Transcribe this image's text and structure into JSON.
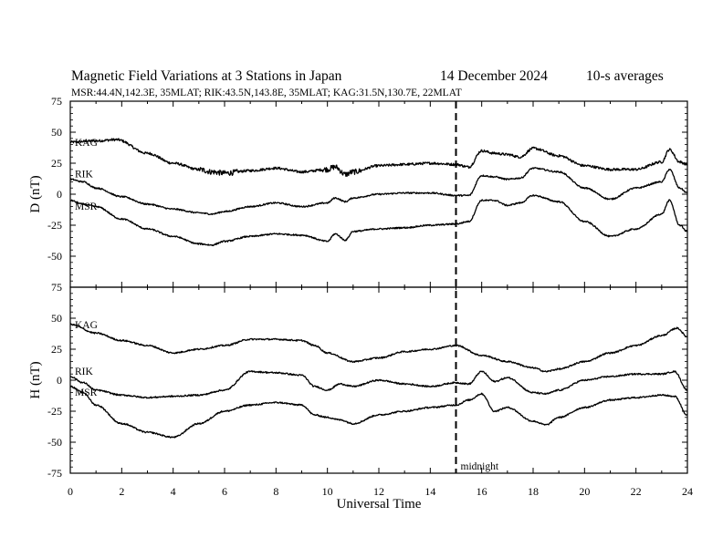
{
  "header": {
    "title": "Magnetic Field Variations at 3 Stations in Japan",
    "date": "14 December 2024",
    "averaging": "10-s averages",
    "stations_info": "MSR:44.4N,142.3E, 35MLAT;  RIK:43.5N,143.8E, 35MLAT;  KAG:31.5N,130.7E, 22MLAT"
  },
  "annotation": {
    "midnight_label": "midnight",
    "midnight_ut": 15
  },
  "chart_data": [
    {
      "type": "line",
      "panel": "D",
      "ylabel": "D (nT)",
      "ylim": [
        -75,
        75
      ],
      "yticks": [
        -75,
        -50,
        -25,
        0,
        25,
        50,
        75
      ],
      "xlim": [
        0,
        24
      ],
      "xticks": [
        0,
        2,
        4,
        6,
        8,
        10,
        12,
        14,
        16,
        18,
        20,
        22,
        24
      ],
      "grid": false,
      "series": [
        {
          "name": "KAG",
          "x": [
            0,
            1,
            1.8,
            3,
            4,
            5,
            5.5,
            6,
            7,
            8,
            9,
            10,
            10.3,
            10.7,
            11,
            12,
            13,
            14,
            15,
            15.5,
            16,
            16.5,
            17,
            17.5,
            18,
            19,
            20,
            21,
            22,
            23,
            23.3,
            23.7,
            24
          ],
          "y": [
            42,
            43,
            44,
            33,
            25,
            20,
            18,
            17,
            19,
            21,
            18,
            20,
            22,
            16,
            18,
            23,
            24,
            25,
            24,
            22,
            35,
            33,
            32,
            30,
            37,
            31,
            23,
            20,
            20,
            26,
            36,
            26,
            24
          ]
        },
        {
          "name": "RIK",
          "x": [
            0,
            0.5,
            1,
            2,
            3,
            4,
            5,
            5.5,
            6,
            7,
            8,
            9,
            10,
            10.3,
            10.7,
            11,
            12,
            13,
            14,
            15,
            15.5,
            16,
            16.5,
            17,
            17.5,
            18,
            19,
            20,
            21,
            22,
            23,
            23.3,
            23.7,
            24
          ],
          "y": [
            12,
            10,
            5,
            -2,
            -8,
            -12,
            -15,
            -16,
            -14,
            -10,
            -7,
            -10,
            -7,
            -3,
            -6,
            -3,
            0,
            1,
            1,
            -1,
            -1,
            15,
            14,
            12,
            13,
            21,
            18,
            5,
            -4,
            5,
            10,
            20,
            5,
            1
          ]
        },
        {
          "name": "MSR",
          "x": [
            0,
            0.5,
            1,
            2,
            3,
            4,
            5,
            5.5,
            6,
            7,
            8,
            9,
            10,
            10.3,
            10.7,
            11,
            12,
            13,
            14,
            15,
            15.5,
            16,
            16.5,
            17,
            17.5,
            18,
            19,
            20,
            21,
            22,
            23,
            23.3,
            23.7,
            24
          ],
          "y": [
            -5,
            -8,
            -10,
            -20,
            -28,
            -34,
            -40,
            -41,
            -38,
            -34,
            -32,
            -33,
            -38,
            -32,
            -37,
            -30,
            -28,
            -27,
            -25,
            -24,
            -22,
            -5,
            -5,
            -9,
            -7,
            -1,
            -6,
            -22,
            -34,
            -28,
            -16,
            -5,
            -25,
            -30
          ]
        }
      ]
    },
    {
      "type": "line",
      "panel": "H",
      "ylabel": "H (nT)",
      "xlabel": "Universal Time",
      "ylim": [
        -75,
        75
      ],
      "yticks": [
        -75,
        -50,
        -25,
        0,
        25,
        50,
        75
      ],
      "xlim": [
        0,
        24
      ],
      "xticks": [
        0,
        2,
        4,
        6,
        8,
        10,
        12,
        14,
        16,
        18,
        20,
        22,
        24
      ],
      "grid": false,
      "series": [
        {
          "name": "KAG",
          "x": [
            0,
            1,
            2,
            3,
            4,
            5,
            6,
            7,
            8,
            9,
            9.5,
            10,
            11,
            12,
            13,
            14,
            15,
            16,
            17,
            18,
            18.5,
            19,
            20,
            21,
            22,
            23,
            23.6,
            24
          ],
          "y": [
            45,
            38,
            32,
            28,
            22,
            25,
            28,
            33,
            33,
            32,
            28,
            22,
            15,
            18,
            23,
            25,
            28,
            20,
            15,
            10,
            7,
            9,
            15,
            22,
            28,
            36,
            42,
            35
          ]
        },
        {
          "name": "RIK",
          "x": [
            0,
            0.5,
            1,
            2,
            3,
            4,
            5,
            6,
            7,
            8,
            9,
            9.5,
            10,
            10.5,
            11,
            12,
            13,
            14,
            15,
            15.5,
            16,
            16.5,
            17,
            18,
            18.5,
            19,
            20,
            21,
            22,
            23,
            23.5,
            24
          ],
          "y": [
            3,
            -2,
            -8,
            -12,
            -14,
            -13,
            -12,
            -8,
            7,
            6,
            4,
            -5,
            -8,
            -3,
            -5,
            0,
            -3,
            -5,
            -2,
            -3,
            7,
            -1,
            2,
            -10,
            -11,
            -8,
            0,
            3,
            5,
            5,
            7,
            -8
          ]
        },
        {
          "name": "MSR",
          "x": [
            0,
            0.5,
            1,
            2,
            3,
            4,
            5,
            6,
            7,
            8,
            9,
            9.5,
            10,
            10.5,
            11,
            12,
            13,
            14,
            15,
            15.5,
            16,
            16.5,
            17,
            18,
            18.5,
            19,
            20,
            21,
            22,
            23,
            23.5,
            24
          ],
          "y": [
            -5,
            -10,
            -20,
            -35,
            -42,
            -46,
            -35,
            -25,
            -20,
            -18,
            -20,
            -28,
            -30,
            -32,
            -35,
            -28,
            -25,
            -22,
            -20,
            -16,
            -11,
            -25,
            -22,
            -33,
            -36,
            -30,
            -22,
            -16,
            -14,
            -12,
            -13,
            -28
          ]
        }
      ]
    }
  ]
}
